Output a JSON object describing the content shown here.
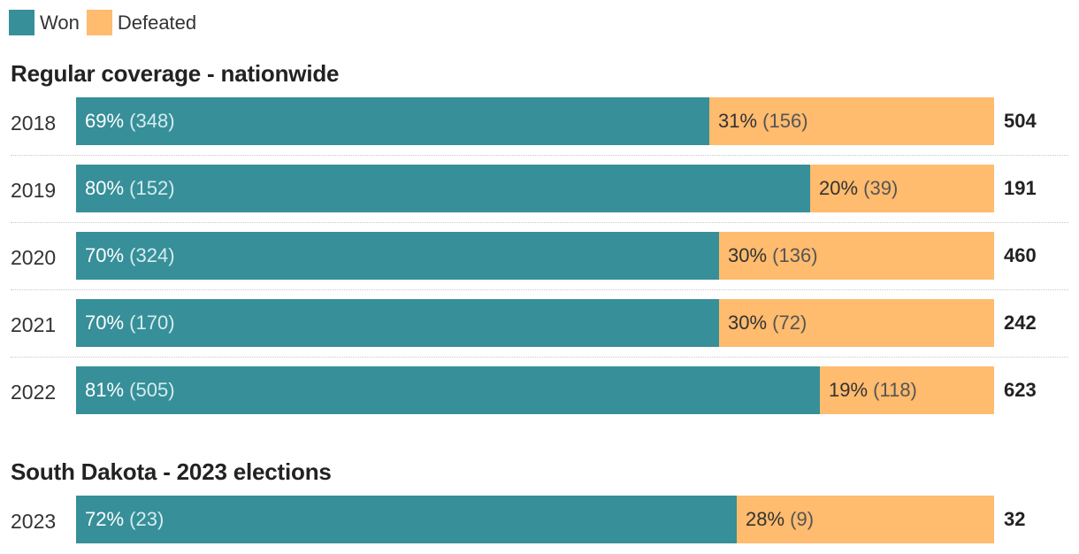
{
  "legend": {
    "won_label": "Won",
    "defeated_label": "Defeated"
  },
  "colors": {
    "won": "#368f99",
    "defeated": "#ffbb6e"
  },
  "chart_data": [
    {
      "type": "bar",
      "orientation": "horizontal",
      "stacked": "100%",
      "title": "Regular coverage - nationwide",
      "categories": [
        "2018",
        "2019",
        "2020",
        "2021",
        "2022"
      ],
      "series": [
        {
          "name": "Won",
          "percent": [
            69,
            80,
            70,
            70,
            81
          ],
          "counts": [
            348,
            152,
            324,
            170,
            505
          ]
        },
        {
          "name": "Defeated",
          "percent": [
            31,
            20,
            30,
            30,
            19
          ],
          "counts": [
            156,
            39,
            136,
            72,
            118
          ]
        }
      ],
      "totals": [
        504,
        191,
        460,
        242,
        623
      ],
      "legend": "top-left"
    },
    {
      "type": "bar",
      "orientation": "horizontal",
      "stacked": "100%",
      "title": "South Dakota - 2023 elections",
      "categories": [
        "2023"
      ],
      "series": [
        {
          "name": "Won",
          "percent": [
            72
          ],
          "counts": [
            23
          ]
        },
        {
          "name": "Defeated",
          "percent": [
            28
          ],
          "counts": [
            9
          ]
        }
      ],
      "totals": [
        32
      ]
    }
  ]
}
